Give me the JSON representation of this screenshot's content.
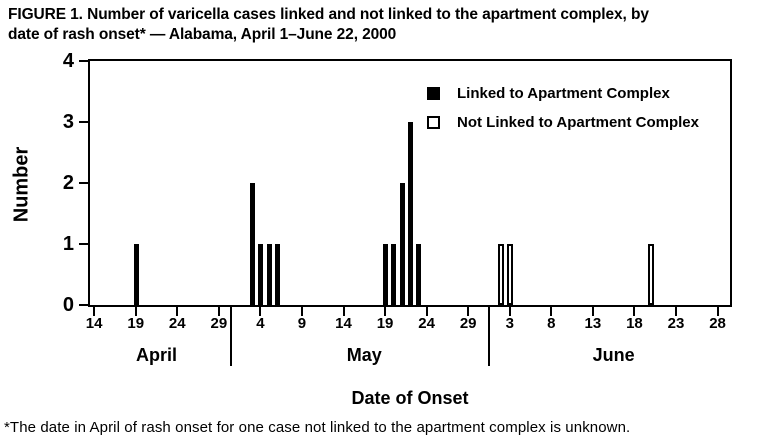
{
  "title": {
    "text": "FIGURE 1. Number of varicella cases linked and not linked to the apartment complex, by\ndate of rash onset* — Alabama, April 1–June 22, 2000"
  },
  "footnote": "*The date in April of rash onset for one case not linked to the apartment complex is unknown.",
  "chart_data": {
    "type": "bar",
    "title": "FIGURE 1. Number of varicella cases linked and not linked to the apartment complex, by date of rash onset* — Alabama, April 1–June 22, 2000",
    "xlabel": "Date of Onset",
    "ylabel": "Number",
    "ylim": [
      0,
      4
    ],
    "yticks": [
      0,
      1,
      2,
      3,
      4
    ],
    "grid": false,
    "legend_position": "top-right-inside",
    "legend": [
      {
        "label": "Linked to Apartment Complex",
        "style": "filled",
        "color": "#000000"
      },
      {
        "label": "Not Linked to Apartment Complex",
        "style": "open",
        "color": "#ffffff",
        "border": "#000000"
      }
    ],
    "months": [
      {
        "name": "April",
        "tick_days": [
          14,
          19,
          24,
          29
        ]
      },
      {
        "name": "May",
        "tick_days": [
          4,
          9,
          14,
          19,
          24,
          29
        ]
      },
      {
        "name": "June",
        "tick_days": [
          3,
          8,
          13,
          18,
          23,
          28
        ]
      }
    ],
    "series": [
      {
        "name": "Linked to Apartment Complex",
        "points": [
          {
            "month": "April",
            "day": 19,
            "count": 1
          },
          {
            "month": "May",
            "day": 3,
            "count": 2
          },
          {
            "month": "May",
            "day": 4,
            "count": 1
          },
          {
            "month": "May",
            "day": 5,
            "count": 1
          },
          {
            "month": "May",
            "day": 6,
            "count": 1
          },
          {
            "month": "May",
            "day": 19,
            "count": 1
          },
          {
            "month": "May",
            "day": 20,
            "count": 1
          },
          {
            "month": "May",
            "day": 21,
            "count": 2
          },
          {
            "month": "May",
            "day": 22,
            "count": 3
          },
          {
            "month": "May",
            "day": 23,
            "count": 1
          }
        ]
      },
      {
        "name": "Not Linked to Apartment Complex",
        "points": [
          {
            "month": "June",
            "day": 2,
            "count": 1
          },
          {
            "month": "June",
            "day": 3,
            "count": 1
          },
          {
            "month": "June",
            "day": 20,
            "count": 1
          }
        ]
      }
    ]
  },
  "colors": {
    "axis": "#000000",
    "linked_fill": "#000000",
    "not_linked_fill": "#ffffff",
    "background": "#ffffff"
  }
}
